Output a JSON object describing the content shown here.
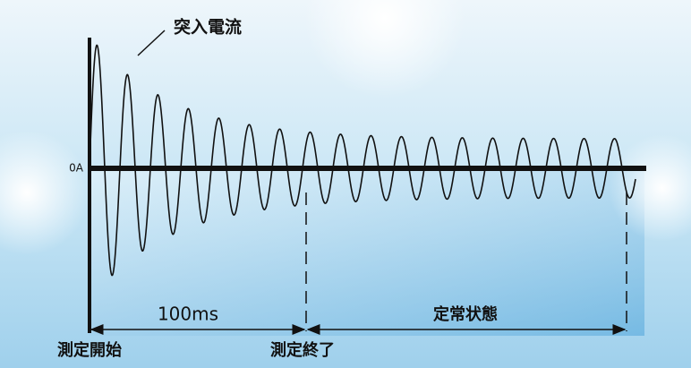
{
  "labels": {
    "inrush": "突入電流",
    "zero": "0A",
    "duration": "100ms",
    "steady": "定常状態",
    "start": "測定開始",
    "end": "測定終了"
  }
}
